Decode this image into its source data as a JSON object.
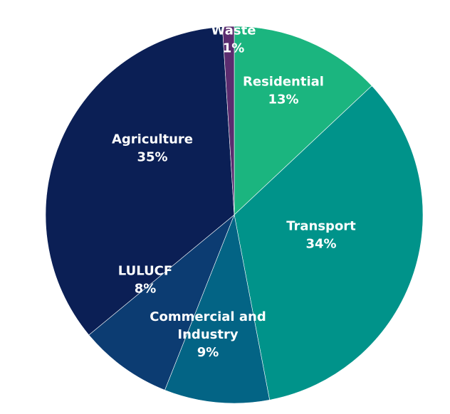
{
  "chart_data": {
    "type": "pie",
    "title": "",
    "start": "top",
    "direction": "clockwise",
    "slices": [
      {
        "label": "Residential",
        "value": 13,
        "pct_label": "13%",
        "color": "#1bb57f"
      },
      {
        "label": "Transport",
        "value": 34,
        "pct_label": "34%",
        "color": "#00938a"
      },
      {
        "label": "Commercial and Industry",
        "label_lines": [
          "Commercial and",
          "Industry"
        ],
        "value": 9,
        "pct_label": "9%",
        "color": "#036485"
      },
      {
        "label": "LULUCF",
        "value": 8,
        "pct_label": "8%",
        "color": "#0c3c72"
      },
      {
        "label": "Agriculture",
        "value": 35,
        "pct_label": "35%",
        "color": "#0b1f55"
      },
      {
        "label": "Waste",
        "value": 1,
        "pct_label": "1%",
        "color": "#5b2c6f"
      }
    ]
  }
}
